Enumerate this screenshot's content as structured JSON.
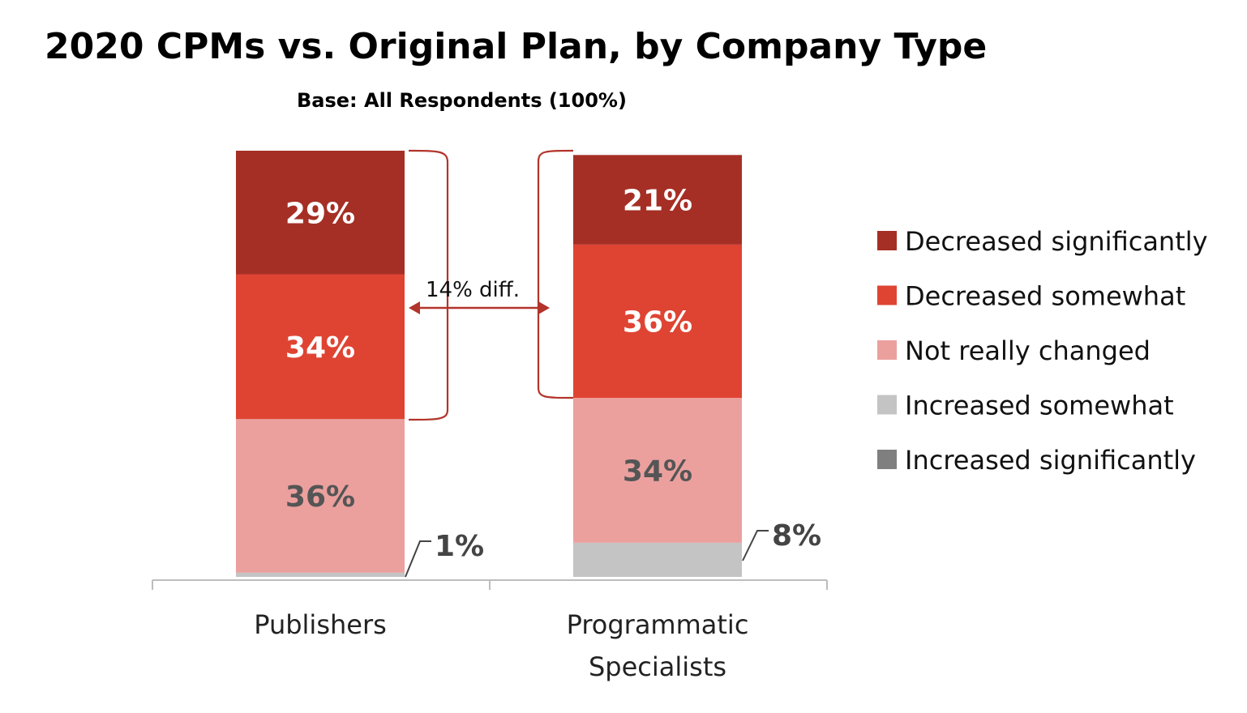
{
  "chart_data": {
    "type": "bar",
    "stacked": true,
    "title": "2020 CPMs vs. Original Plan, by Company Type",
    "subtitle": "Base:  All Respondents (100%)",
    "categories": [
      [
        "Publishers"
      ],
      [
        "Programmatic",
        "Specialists"
      ]
    ],
    "series": [
      {
        "name": "Increased significantly",
        "color": "#7f7f7f",
        "values": [
          0,
          0
        ],
        "labels": [
          "",
          ""
        ]
      },
      {
        "name": "Increased somewhat",
        "color": "#c4c4c4",
        "values": [
          1,
          8
        ],
        "labels": [
          "",
          ""
        ]
      },
      {
        "name": "Not really changed",
        "color": "#eba09e",
        "values": [
          36,
          34
        ],
        "labels": [
          "36%",
          "34%"
        ]
      },
      {
        "name": "Decreased somewhat",
        "color": "#df4433",
        "values": [
          34,
          36
        ],
        "labels": [
          "34%",
          "36%"
        ]
      },
      {
        "name": "Decreased significantly",
        "color": "#a52f25",
        "values": [
          29,
          21
        ],
        "labels": [
          "29%",
          "21%"
        ]
      }
    ],
    "label_colors": {
      "dark": "#ffffff",
      "light": "#555555"
    },
    "callouts": [
      "1%",
      "8%"
    ],
    "annotation": "14%  diff.",
    "legend_order": [
      "Decreased significantly",
      "Decreased somewhat",
      "Not really changed",
      "Increased somewhat",
      "Increased significantly"
    ],
    "legend_position": "right",
    "ylim": [
      0,
      100
    ],
    "grid": false
  }
}
